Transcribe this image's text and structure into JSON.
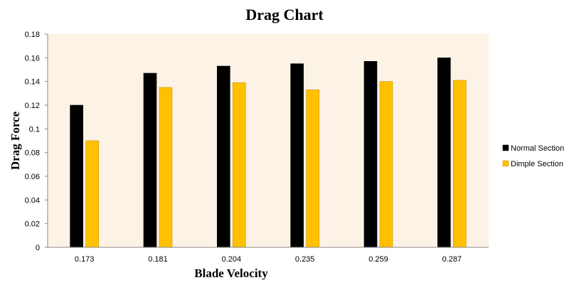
{
  "chart_data": {
    "type": "bar",
    "title": "Drag Chart",
    "xlabel": "Blade Velocity",
    "ylabel": "Drag Force",
    "categories": [
      "0.173",
      "0.181",
      "0.204",
      "0.235",
      "0.259",
      "0.287"
    ],
    "series": [
      {
        "name": "Normal Section",
        "color": "#000000",
        "values": [
          0.12,
          0.147,
          0.153,
          0.155,
          0.157,
          0.16
        ]
      },
      {
        "name": "Dimple Section",
        "color": "#FFC000",
        "values": [
          0.09,
          0.135,
          0.139,
          0.133,
          0.14,
          0.141
        ]
      }
    ],
    "ylim": [
      0,
      0.18
    ],
    "yticks": [
      "0",
      "0.02",
      "0.04",
      "0.06",
      "0.08",
      "0.1",
      "0.12",
      "0.14",
      "0.16",
      "0.18"
    ],
    "plot_background": "#FDF2E6",
    "grid": false,
    "legend_position": "right"
  }
}
